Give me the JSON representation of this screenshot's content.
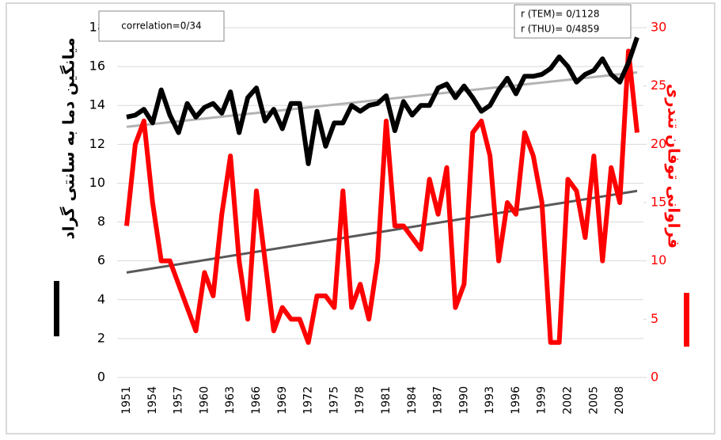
{
  "chart_data": {
    "type": "line",
    "categories": [
      "1951",
      null,
      null,
      "1954",
      null,
      null,
      "1957",
      null,
      null,
      "1960",
      null,
      null,
      "1963",
      null,
      null,
      "1966",
      null,
      null,
      "1969",
      null,
      null,
      "1972",
      null,
      null,
      "1975",
      null,
      null,
      "1978",
      null,
      null,
      "1981",
      null,
      null,
      "1984",
      null,
      null,
      "1987",
      null,
      null,
      "1990",
      null,
      null,
      "1993",
      null,
      null,
      "1996",
      null,
      null,
      "1999",
      null,
      null,
      "2002",
      null,
      null,
      "2005",
      null,
      null,
      "2008",
      null,
      null
    ],
    "series": [
      {
        "color": "#000000",
        "values": [
          13.4,
          13.5,
          13.8,
          13.1,
          14.8,
          13.5,
          12.6,
          14.1,
          13.4,
          13.9,
          14.1,
          13.6,
          14.7,
          12.6,
          14.4,
          14.9,
          13.2,
          13.8,
          12.8,
          14.1,
          14.1,
          11.0,
          13.7,
          11.9,
          13.1,
          13.1,
          14.0,
          13.7,
          14.0,
          14.1,
          14.5,
          12.7,
          14.2,
          13.5,
          14.0,
          14.0,
          14.9,
          15.1,
          14.4,
          15.0,
          14.4,
          13.7,
          14.0,
          14.8,
          15.4,
          14.6,
          15.5,
          15.5,
          15.6,
          15.9,
          16.5,
          16.0,
          15.2,
          15.6,
          15.8,
          16.4,
          15.6,
          15.2,
          16.2,
          17.5
        ]
      },
      {
        "color": "#ff0000",
        "axis": "y2",
        "values": [
          13,
          20,
          22,
          15,
          10,
          10,
          8,
          6,
          4,
          9,
          7,
          14,
          19,
          10,
          5,
          16,
          10,
          4,
          6,
          5,
          5,
          3,
          7,
          7,
          6,
          16,
          6,
          8,
          5,
          10,
          22,
          13,
          13,
          12,
          11,
          17,
          14,
          18,
          6,
          8,
          21,
          22,
          19,
          10,
          15,
          14,
          21,
          19,
          15,
          3,
          3,
          17,
          16,
          12,
          19,
          10,
          18,
          15,
          28,
          21
        ]
      }
    ],
    "trendlines": [
      {
        "axis": "y",
        "color": "#b3b3b3",
        "values": [
          12.9,
          15.7
        ]
      },
      {
        "axis": "y2",
        "color": "#595959",
        "values": [
          9.0,
          16.0
        ]
      }
    ],
    "ylabel": "میانگین دما به سانتی گراد",
    "y2label": "فراوانی توفان تندری",
    "ylim": [
      0,
      18
    ],
    "yticks": [
      0,
      2,
      4,
      6,
      8,
      10,
      12,
      14,
      16,
      18
    ],
    "y2lim": [
      0,
      30
    ],
    "y2ticks": [
      0,
      5,
      10,
      15,
      20,
      25,
      30
    ],
    "y2tick_color": "#ff0000",
    "grid": true,
    "annotations": [
      "correlation=0/34",
      "r (TEM)= 0/1128",
      "r (THU)= 0/4859"
    ]
  }
}
